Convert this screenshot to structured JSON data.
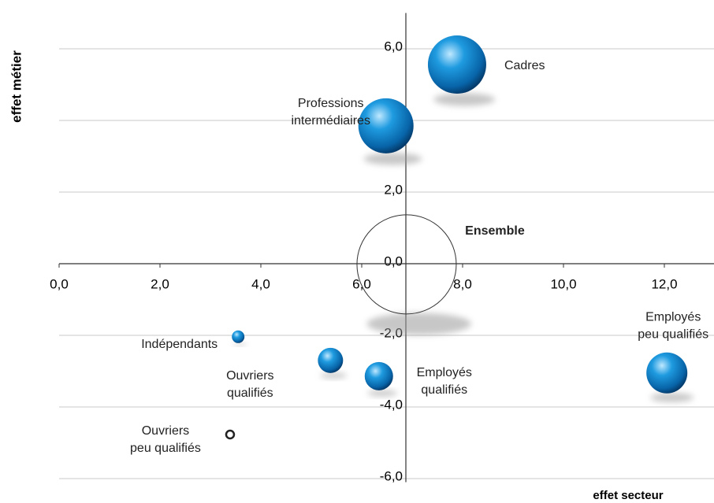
{
  "chart_data": {
    "type": "bubble",
    "x_axis_label": "effet secteur",
    "y_axis_label": "effet métier",
    "xlim": [
      0,
      13
    ],
    "ylim": [
      -6.1,
      7
    ],
    "xticks": [
      {
        "value": 0,
        "label": "0,0"
      },
      {
        "value": 2,
        "label": "2,0"
      },
      {
        "value": 4,
        "label": "4,0"
      },
      {
        "value": 6,
        "label": "6,0"
      },
      {
        "value": 8,
        "label": "8,0"
      },
      {
        "value": 10,
        "label": "10,0"
      },
      {
        "value": 12,
        "label": "12,0"
      }
    ],
    "yticks": [
      {
        "value": -6,
        "label": "-6,0"
      },
      {
        "value": -4,
        "label": "-4,0"
      },
      {
        "value": -2,
        "label": "-2,0"
      },
      {
        "value": 0,
        "label": "0,0"
      },
      {
        "value": 2,
        "label": "2,0"
      },
      {
        "value": 4,
        "label": "4,0"
      },
      {
        "value": 6,
        "label": "6,0"
      }
    ],
    "y_axis_crosses_x": 6.875,
    "grid": true,
    "color": "#0a7cc8",
    "labels": [
      [
        "Cadres"
      ],
      [
        "Professions",
        "intermédiaires"
      ],
      [
        "Ensemble"
      ],
      [
        "Indépendants"
      ],
      [
        "Ouvriers",
        "qualifiés"
      ],
      [
        "Employés",
        "qualifiés"
      ],
      [
        "Employés",
        "peu qualifiés"
      ],
      [
        "Ouvriers",
        "peu qualifiés"
      ]
    ],
    "x": [
      7.89,
      6.48,
      6.89,
      3.55,
      5.38,
      6.34,
      12.05,
      3.39
    ],
    "y": [
      5.56,
      3.85,
      -0.02,
      -2.04,
      -2.7,
      -3.14,
      -3.05,
      -4.77
    ],
    "sizes": [
      37,
      35,
      63,
      8,
      16,
      18,
      26,
      5
    ],
    "styles": [
      "sphere",
      "sphere",
      "outline",
      "sphere",
      "sphere",
      "sphere",
      "sphere",
      "ring"
    ]
  }
}
